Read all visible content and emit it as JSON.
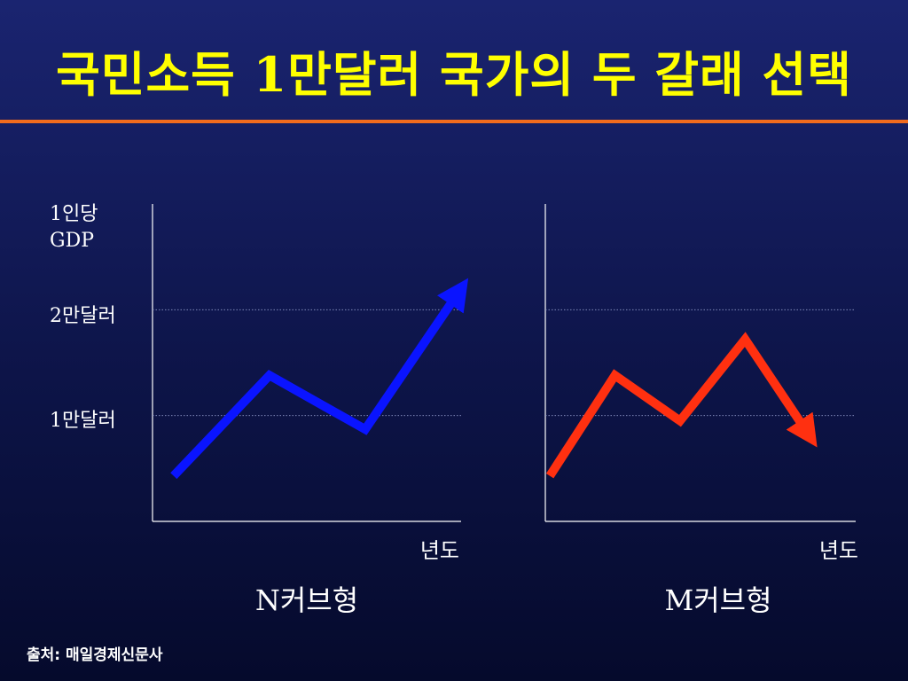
{
  "slide": {
    "title": "국민소득 1만달러 국가의 두 갈래 선택",
    "source": "출처: 매일경제신문사"
  },
  "chart_data": [
    {
      "type": "line",
      "ylabel": [
        "1인당",
        "GDP"
      ],
      "xlabel": "년도",
      "caption": "N커브형",
      "y_ticks": [
        {
          "value": 10000,
          "label": "1만달러"
        },
        {
          "value": 20000,
          "label": "2만달러"
        }
      ],
      "ylim": [
        0,
        30000
      ],
      "x": [
        1,
        2,
        3,
        4
      ],
      "xlim": [
        0.78,
        4.0
      ],
      "values": [
        4300,
        13800,
        8700,
        22000
      ],
      "arrow_end": true,
      "color": "#0a14ff",
      "grid": "horizontal dotted at tick values"
    },
    {
      "type": "line",
      "xlabel": "년도",
      "caption": "M커브형",
      "y_ticks": [
        {
          "value": 10000,
          "label": ""
        },
        {
          "value": 20000,
          "label": ""
        }
      ],
      "ylim": [
        0,
        30000
      ],
      "x": [
        1,
        2,
        3,
        4,
        5
      ],
      "xlim": [
        0.93,
        5.7
      ],
      "values": [
        4300,
        13800,
        9500,
        17200,
        8000
      ],
      "arrow_end": true,
      "color": "#ff3010",
      "grid": "horizontal dotted at tick values"
    }
  ]
}
